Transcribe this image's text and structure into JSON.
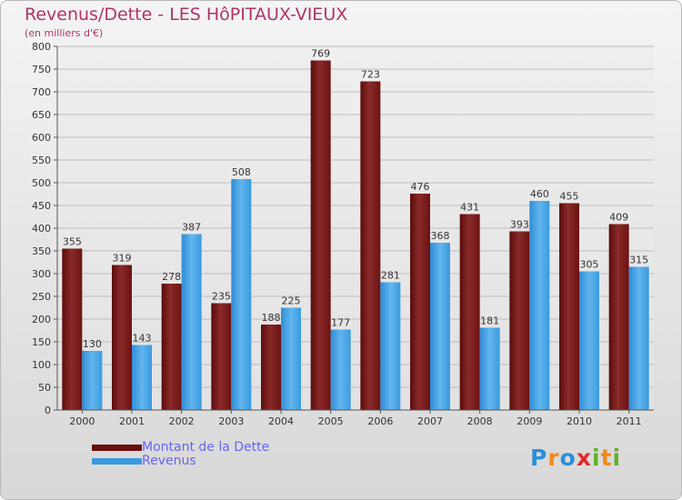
{
  "header": {
    "title": "Revenus/Dette - LES HôPITAUX-VIEUX",
    "subtitle": "(en milliers d'€)"
  },
  "chart_data": {
    "type": "bar",
    "title": "Revenus/Dette - LES HôPITAUX-VIEUX",
    "ylabel": "(en milliers d'€)",
    "xlabel": "",
    "categories": [
      "2000",
      "2001",
      "2002",
      "2003",
      "2004",
      "2005",
      "2006",
      "2007",
      "2008",
      "2009",
      "2010",
      "2011"
    ],
    "series": [
      {
        "name": "Montant de la Dette",
        "color": "#7a1a1a",
        "values": [
          355,
          319,
          278,
          235,
          188,
          769,
          723,
          476,
          431,
          393,
          455,
          409
        ]
      },
      {
        "name": "Revenus",
        "color": "#3a9ae0",
        "values": [
          130,
          143,
          387,
          508,
          225,
          177,
          281,
          368,
          181,
          460,
          305,
          315
        ]
      }
    ],
    "ylim": [
      0,
      800
    ],
    "yticks": [
      0,
      50,
      100,
      150,
      200,
      250,
      300,
      350,
      400,
      450,
      500,
      550,
      600,
      650,
      700,
      750,
      800
    ],
    "grid": true,
    "legend": "bottom-left"
  },
  "legend": {
    "items": [
      {
        "label": "Montant de la Dette",
        "color": "#6b0e0e"
      },
      {
        "label": "Revenus",
        "color": "#3a9ae0"
      }
    ]
  },
  "brand": {
    "letters": [
      "P",
      "r",
      "o",
      "x",
      "i",
      "t",
      "i"
    ]
  },
  "colors": {
    "title": "#b0336a",
    "legend_text": "#6666ee"
  }
}
